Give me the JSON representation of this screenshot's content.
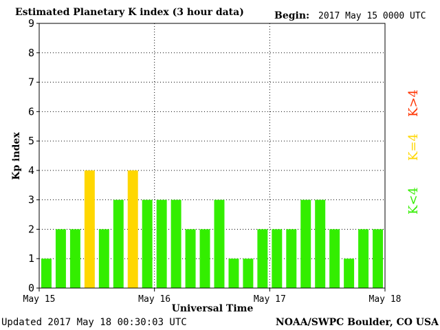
{
  "header": {
    "title": "Estimated Planetary K index (3 hour data)",
    "begin_label": "Begin:",
    "begin_value": "2017 May 15 0000 UTC"
  },
  "footer": {
    "updated": "Updated 2017 May 18 00:30:03 UTC",
    "source": "NOAA/SWPC Boulder, CO USA"
  },
  "legend": [
    {
      "label": "K>4",
      "color": "#ff3300"
    },
    {
      "label": "K=4",
      "color": "#ffd700"
    },
    {
      "label": "K<4",
      "color": "#33ee00"
    }
  ],
  "colors": {
    "below4": "#33ee00",
    "equal4": "#ffd700",
    "above4": "#ff3300",
    "grid": "#000000"
  },
  "chart_data": {
    "type": "bar",
    "title": "Estimated Planetary K index (3 hour data)",
    "xlabel": "Universal Time",
    "ylabel": "Kp index",
    "ylim": [
      0,
      9
    ],
    "y_ticks": [
      0,
      1,
      2,
      3,
      4,
      5,
      6,
      7,
      8,
      9
    ],
    "x_ticks": [
      "May 15",
      "May 16",
      "May 17",
      "May 18"
    ],
    "interval_hours": 3,
    "grid": true,
    "values": [
      1,
      2,
      2,
      4,
      2,
      3,
      4,
      3,
      3,
      3,
      2,
      2,
      3,
      1,
      1,
      2,
      2,
      2,
      3,
      3,
      2,
      1,
      2,
      2
    ]
  }
}
